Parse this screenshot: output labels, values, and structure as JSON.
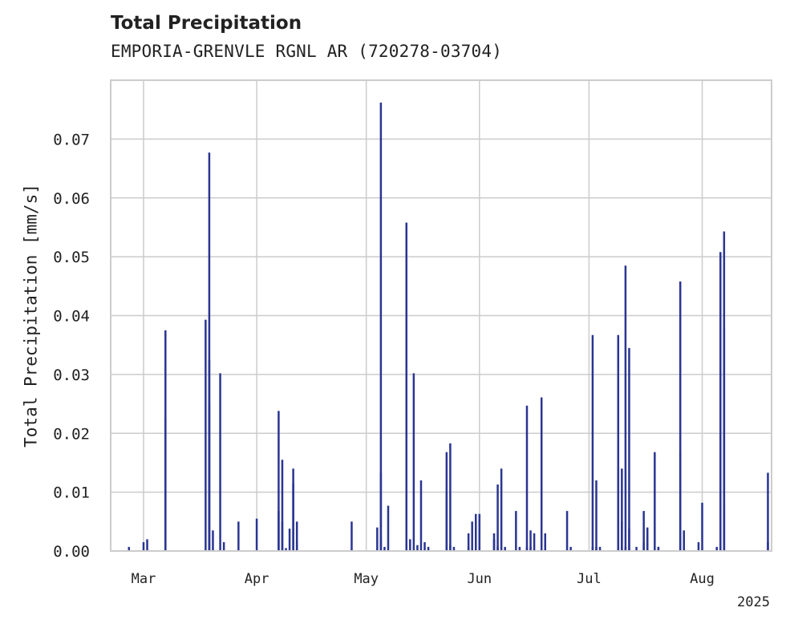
{
  "chart_data": {
    "type": "bar",
    "title": "Total Precipitation",
    "subtitle": "EMPORIA-GRENVLE RGNL AR (720278-03704)",
    "xlabel": "",
    "ylabel": "Total Precipitation [mm/s]",
    "year_label": "2025",
    "xlim": [
      "2025-02-20",
      "2025-08-20"
    ],
    "ylim": [
      0,
      0.08
    ],
    "yticks": [
      0.0,
      0.01,
      0.02,
      0.03,
      0.04,
      0.05,
      0.06,
      0.07
    ],
    "ytick_labels": [
      "0.00",
      "0.01",
      "0.02",
      "0.03",
      "0.04",
      "0.05",
      "0.06",
      "0.07"
    ],
    "xticks": [
      "2025-03-01",
      "2025-04-01",
      "2025-05-01",
      "2025-06-01",
      "2025-07-01",
      "2025-08-01"
    ],
    "xtick_labels": [
      "Mar",
      "Apr",
      "May",
      "Jun",
      "Jul",
      "Aug"
    ],
    "grid": true,
    "bar_color": "#2a3592",
    "series": [
      {
        "x": [
          "2025-02-25",
          "2025-03-01",
          "2025-03-02",
          "2025-03-07",
          "2025-03-07",
          "2025-03-18",
          "2025-03-19",
          "2025-03-19",
          "2025-03-19",
          "2025-03-20",
          "2025-03-22",
          "2025-03-23",
          "2025-03-27",
          "2025-04-01",
          "2025-04-07",
          "2025-04-07",
          "2025-04-08",
          "2025-04-08",
          "2025-04-09",
          "2025-04-10",
          "2025-04-11",
          "2025-04-11",
          "2025-04-12",
          "2025-04-12",
          "2025-04-27",
          "2025-05-04",
          "2025-05-05",
          "2025-05-05",
          "2025-05-05",
          "2025-05-06",
          "2025-05-07",
          "2025-05-12",
          "2025-05-12",
          "2025-05-12",
          "2025-05-13",
          "2025-05-14",
          "2025-05-15",
          "2025-05-16",
          "2025-05-17",
          "2025-05-18",
          "2025-05-23",
          "2025-05-23",
          "2025-05-24",
          "2025-05-24",
          "2025-05-25",
          "2025-05-29",
          "2025-05-29",
          "2025-05-30",
          "2025-05-31",
          "2025-06-01",
          "2025-06-05",
          "2025-06-05",
          "2025-06-06",
          "2025-06-06",
          "2025-06-07",
          "2025-06-08",
          "2025-06-11",
          "2025-06-12",
          "2025-06-14",
          "2025-06-14",
          "2025-06-15",
          "2025-06-15",
          "2025-06-16",
          "2025-06-18",
          "2025-06-19",
          "2025-06-25",
          "2025-06-26",
          "2025-07-02",
          "2025-07-02",
          "2025-07-03",
          "2025-07-03",
          "2025-07-04",
          "2025-07-09",
          "2025-07-09",
          "2025-07-09",
          "2025-07-10",
          "2025-07-10",
          "2025-07-11",
          "2025-07-11",
          "2025-07-12",
          "2025-07-12",
          "2025-07-14",
          "2025-07-16",
          "2025-07-16",
          "2025-07-17",
          "2025-07-17",
          "2025-07-19",
          "2025-07-20",
          "2025-07-20",
          "2025-07-26",
          "2025-07-26",
          "2025-07-27",
          "2025-07-31",
          "2025-08-01",
          "2025-08-05",
          "2025-08-06",
          "2025-08-06",
          "2025-08-07",
          "2025-08-07",
          "2025-08-07",
          "2025-08-19",
          "2025-08-19"
        ],
        "values": [
          0.0007,
          0.0015,
          0.002,
          0.0375,
          0.0225,
          0.0393,
          0.0677,
          0.0325,
          0.025,
          0.0035,
          0.0302,
          0.0015,
          0.005,
          0.0055,
          0.0068,
          0.0238,
          0.0155,
          0.005,
          0.0005,
          0.0038,
          0.0115,
          0.014,
          0.005,
          0.0015,
          0.005,
          0.004,
          0.0133,
          0.0762,
          0.002,
          0.0007,
          0.0077,
          0.0558,
          0.009,
          0.004,
          0.002,
          0.0302,
          0.001,
          0.012,
          0.0015,
          0.0007,
          0.0168,
          0.01,
          0.0183,
          0.001,
          0.0007,
          0.0007,
          0.003,
          0.005,
          0.0063,
          0.0063,
          0.002,
          0.003,
          0.0113,
          0.0007,
          0.014,
          0.0007,
          0.0068,
          0.0007,
          0.0007,
          0.0247,
          0.0007,
          0.0035,
          0.003,
          0.0261,
          0.003,
          0.0068,
          0.0007,
          0.0007,
          0.0367,
          0.012,
          0.0007,
          0.0007,
          0.0007,
          0.014,
          0.0367,
          0.014,
          0.005,
          0.0007,
          0.0485,
          0.0038,
          0.0345,
          0.0007,
          0.0015,
          0.0068,
          0.003,
          0.004,
          0.0168,
          0.0007,
          0.0007,
          0.017,
          0.0458,
          0.0035,
          0.0015,
          0.0082,
          0.0007,
          0.0007,
          0.0508,
          0.0077,
          0.0543,
          0.038,
          0.0015,
          0.0133
        ]
      }
    ]
  }
}
